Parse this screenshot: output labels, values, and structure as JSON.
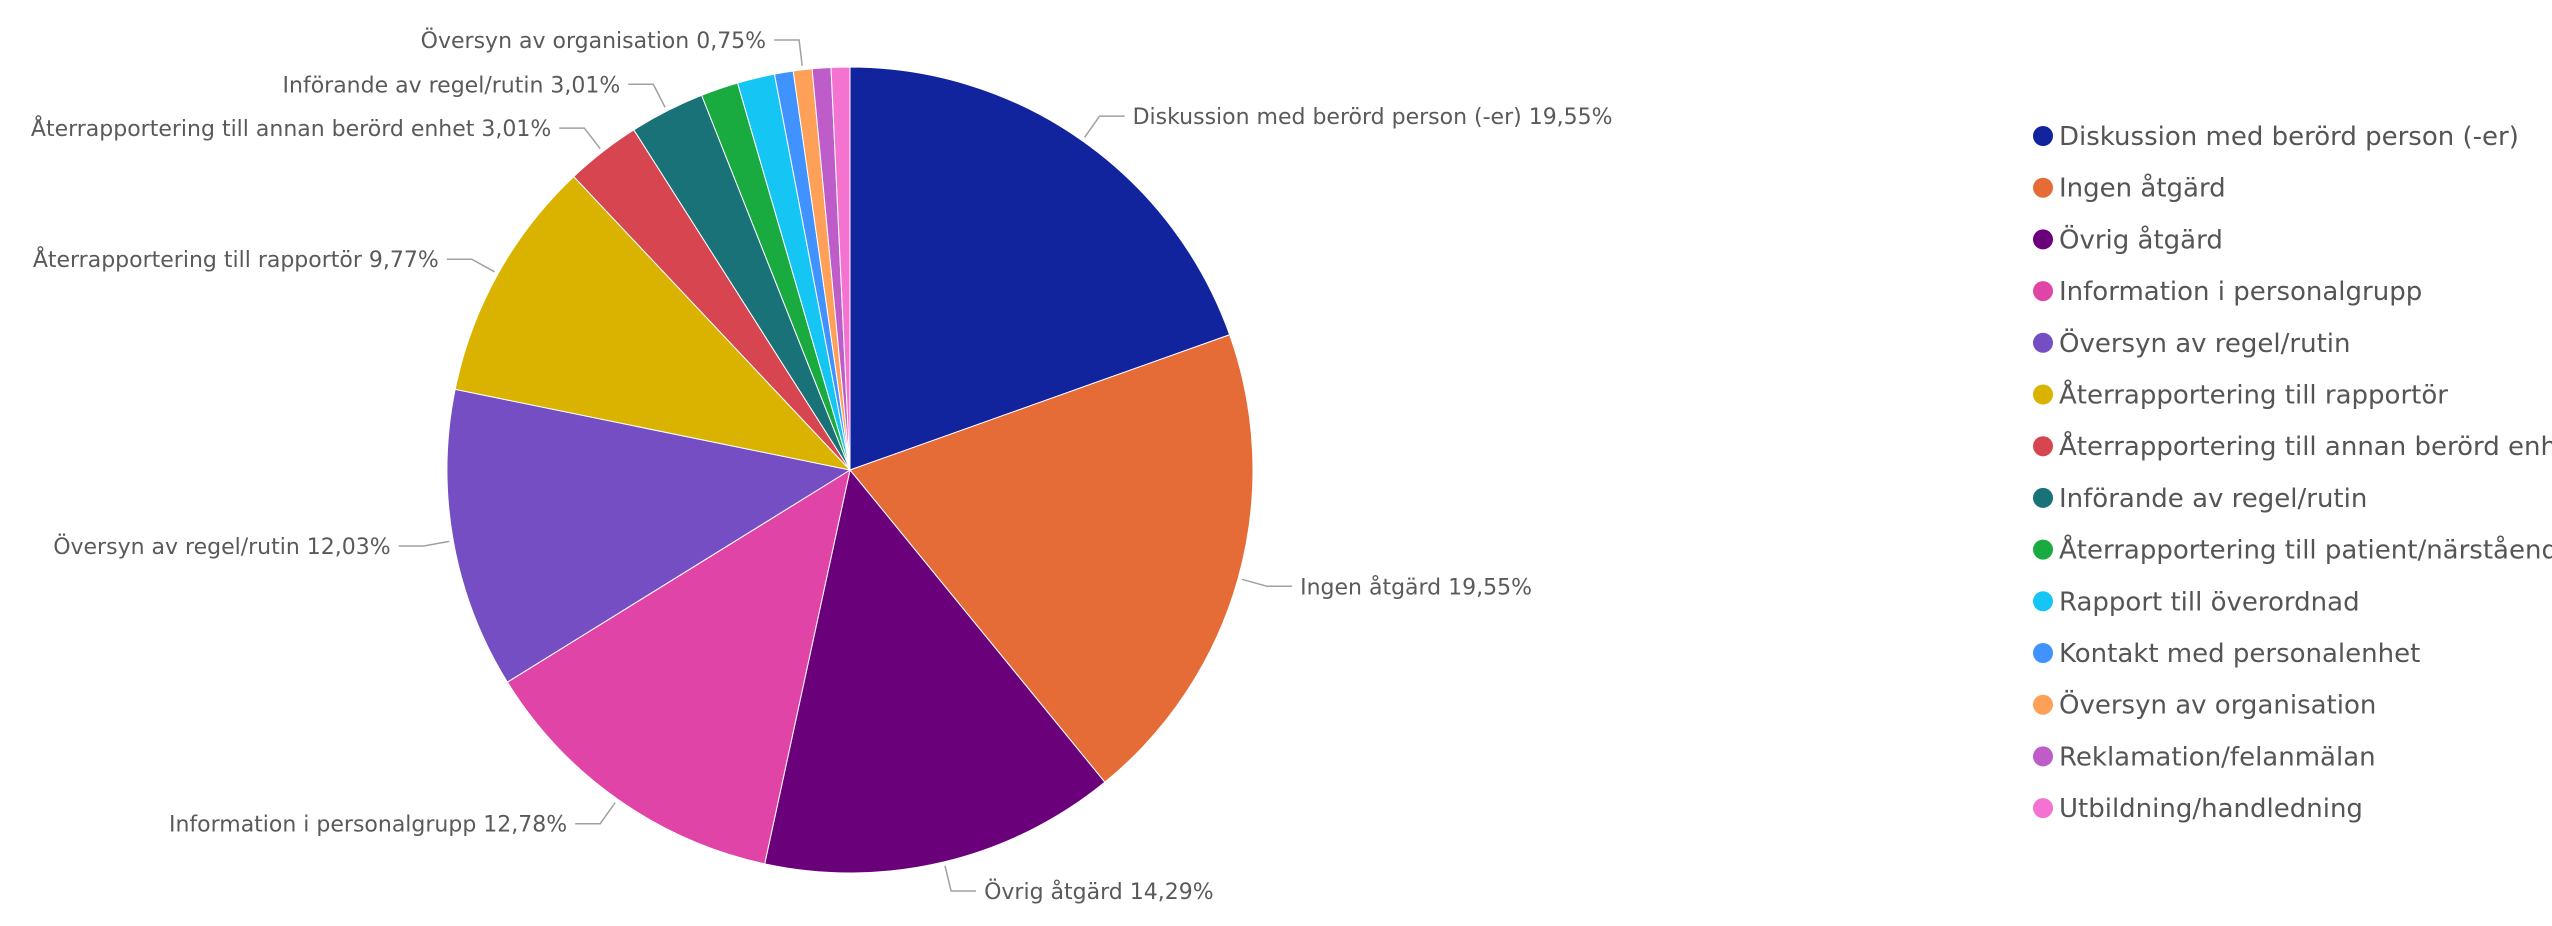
{
  "chart_data": {
    "type": "pie",
    "slices": [
      {
        "label": "Diskussion med berörd person (-er)",
        "value": 19.55,
        "value_label": "19,55%",
        "color": "#12239E",
        "show_label": true
      },
      {
        "label": "Ingen åtgärd",
        "value": 19.55,
        "value_label": "19,55%",
        "color": "#E66C37",
        "show_label": true
      },
      {
        "label": "Övrig åtgärd",
        "value": 14.29,
        "value_label": "14,29%",
        "color": "#6B007B",
        "show_label": true
      },
      {
        "label": "Information i personalgrupp",
        "value": 12.78,
        "value_label": "12,78%",
        "color": "#E044A7",
        "show_label": true
      },
      {
        "label": "Översyn av regel/rutin",
        "value": 12.03,
        "value_label": "12,03%",
        "color": "#744EC2",
        "show_label": true
      },
      {
        "label": "Återrapportering till rapportör",
        "value": 9.77,
        "value_label": "9,77%",
        "color": "#D9B300",
        "show_label": true
      },
      {
        "label": "Återrapportering till annan berörd enhet",
        "value": 3.01,
        "value_label": "3,01%",
        "color": "#D64550",
        "show_label": true
      },
      {
        "label": "Införande av regel/rutin",
        "value": 3.01,
        "value_label": "3,01%",
        "color": "#197278",
        "show_label": true
      },
      {
        "label": "Återrapportering till patient/närstående",
        "value": 1.5,
        "value_label": "",
        "color": "#1AAB40",
        "show_label": false
      },
      {
        "label": "Rapport till överordnad",
        "value": 1.5,
        "value_label": "",
        "color": "#15C6F4",
        "show_label": false
      },
      {
        "label": "Kontakt med personalenhet",
        "value": 0.75,
        "value_label": "",
        "color": "#4092FF",
        "show_label": false
      },
      {
        "label": "Översyn av organisation",
        "value": 0.75,
        "value_label": "0,75%",
        "color": "#FFA058",
        "show_label": true
      },
      {
        "label": "Reklamation/felanmälan",
        "value": 0.75,
        "value_label": "",
        "color": "#BE5DC9",
        "show_label": false
      },
      {
        "label": "Utbildning/handledning",
        "value": 0.75,
        "value_label": "",
        "color": "#F472D0",
        "show_label": false
      }
    ],
    "legend_position": "right"
  }
}
